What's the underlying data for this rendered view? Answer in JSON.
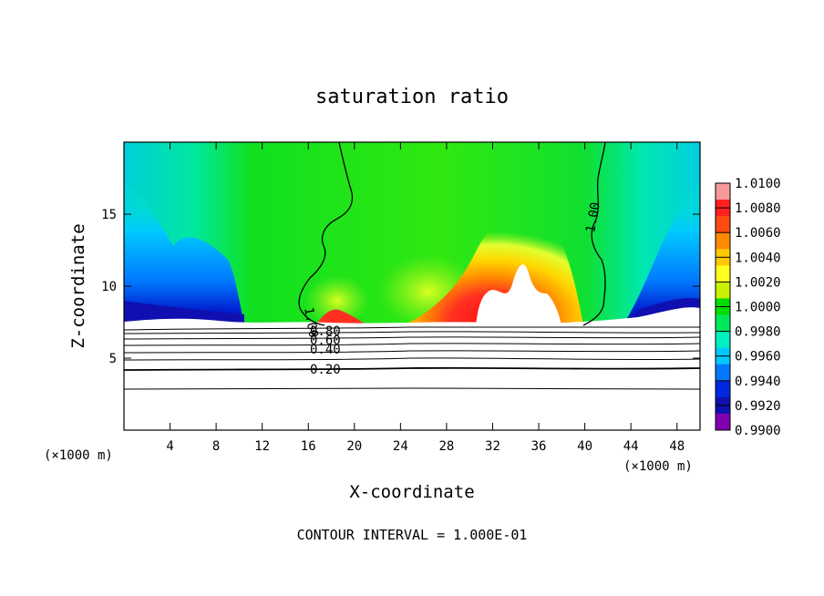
{
  "chart_data": {
    "type": "heatmap",
    "title": "saturation ratio",
    "xlabel": "X-coordinate",
    "ylabel": "Z-coordinate",
    "x_unit": "(×1000 m)",
    "z_unit": "(×1000 m)",
    "xlim": [
      0,
      50
    ],
    "ylim": [
      0,
      20
    ],
    "x_ticks": [
      4,
      8,
      12,
      16,
      20,
      24,
      28,
      32,
      36,
      40,
      44,
      48
    ],
    "y_ticks": [
      5,
      10,
      15
    ],
    "colorbar": {
      "min": 0.99,
      "max": 1.01,
      "tick_labels": [
        "1.0100",
        "1.0080",
        "1.0060",
        "1.0040",
        "1.0020",
        "1.0000",
        "0.9980",
        "0.9960",
        "0.9940",
        "0.9920",
        "0.9900"
      ],
      "colors": [
        "#f59a9a",
        "#ff2020",
        "#ff4a10",
        "#ff8a00",
        "#ffc800",
        "#ffff20",
        "#c8f000",
        "#00dd00",
        "#00e85a",
        "#00f0c0",
        "#00c8ff",
        "#0078ff",
        "#0028e0",
        "#1010b0",
        "#8000b0"
      ]
    },
    "contour_labels": [
      {
        "label": "1.00",
        "x": 15.6,
        "z": 8.5
      },
      {
        "label": "1.00",
        "x": 41.6,
        "z": 13.5
      },
      {
        "label": "0.80",
        "x": 17.2,
        "z": 6.9
      },
      {
        "label": "0.60",
        "x": 17.2,
        "z": 6.3
      },
      {
        "label": "0.40",
        "x": 17.2,
        "z": 5.6
      },
      {
        "label": "0.20",
        "x": 17.2,
        "z": 4.3
      }
    ],
    "contour_interval_text": "CONTOUR INTERVAL = 1.000E-01"
  }
}
